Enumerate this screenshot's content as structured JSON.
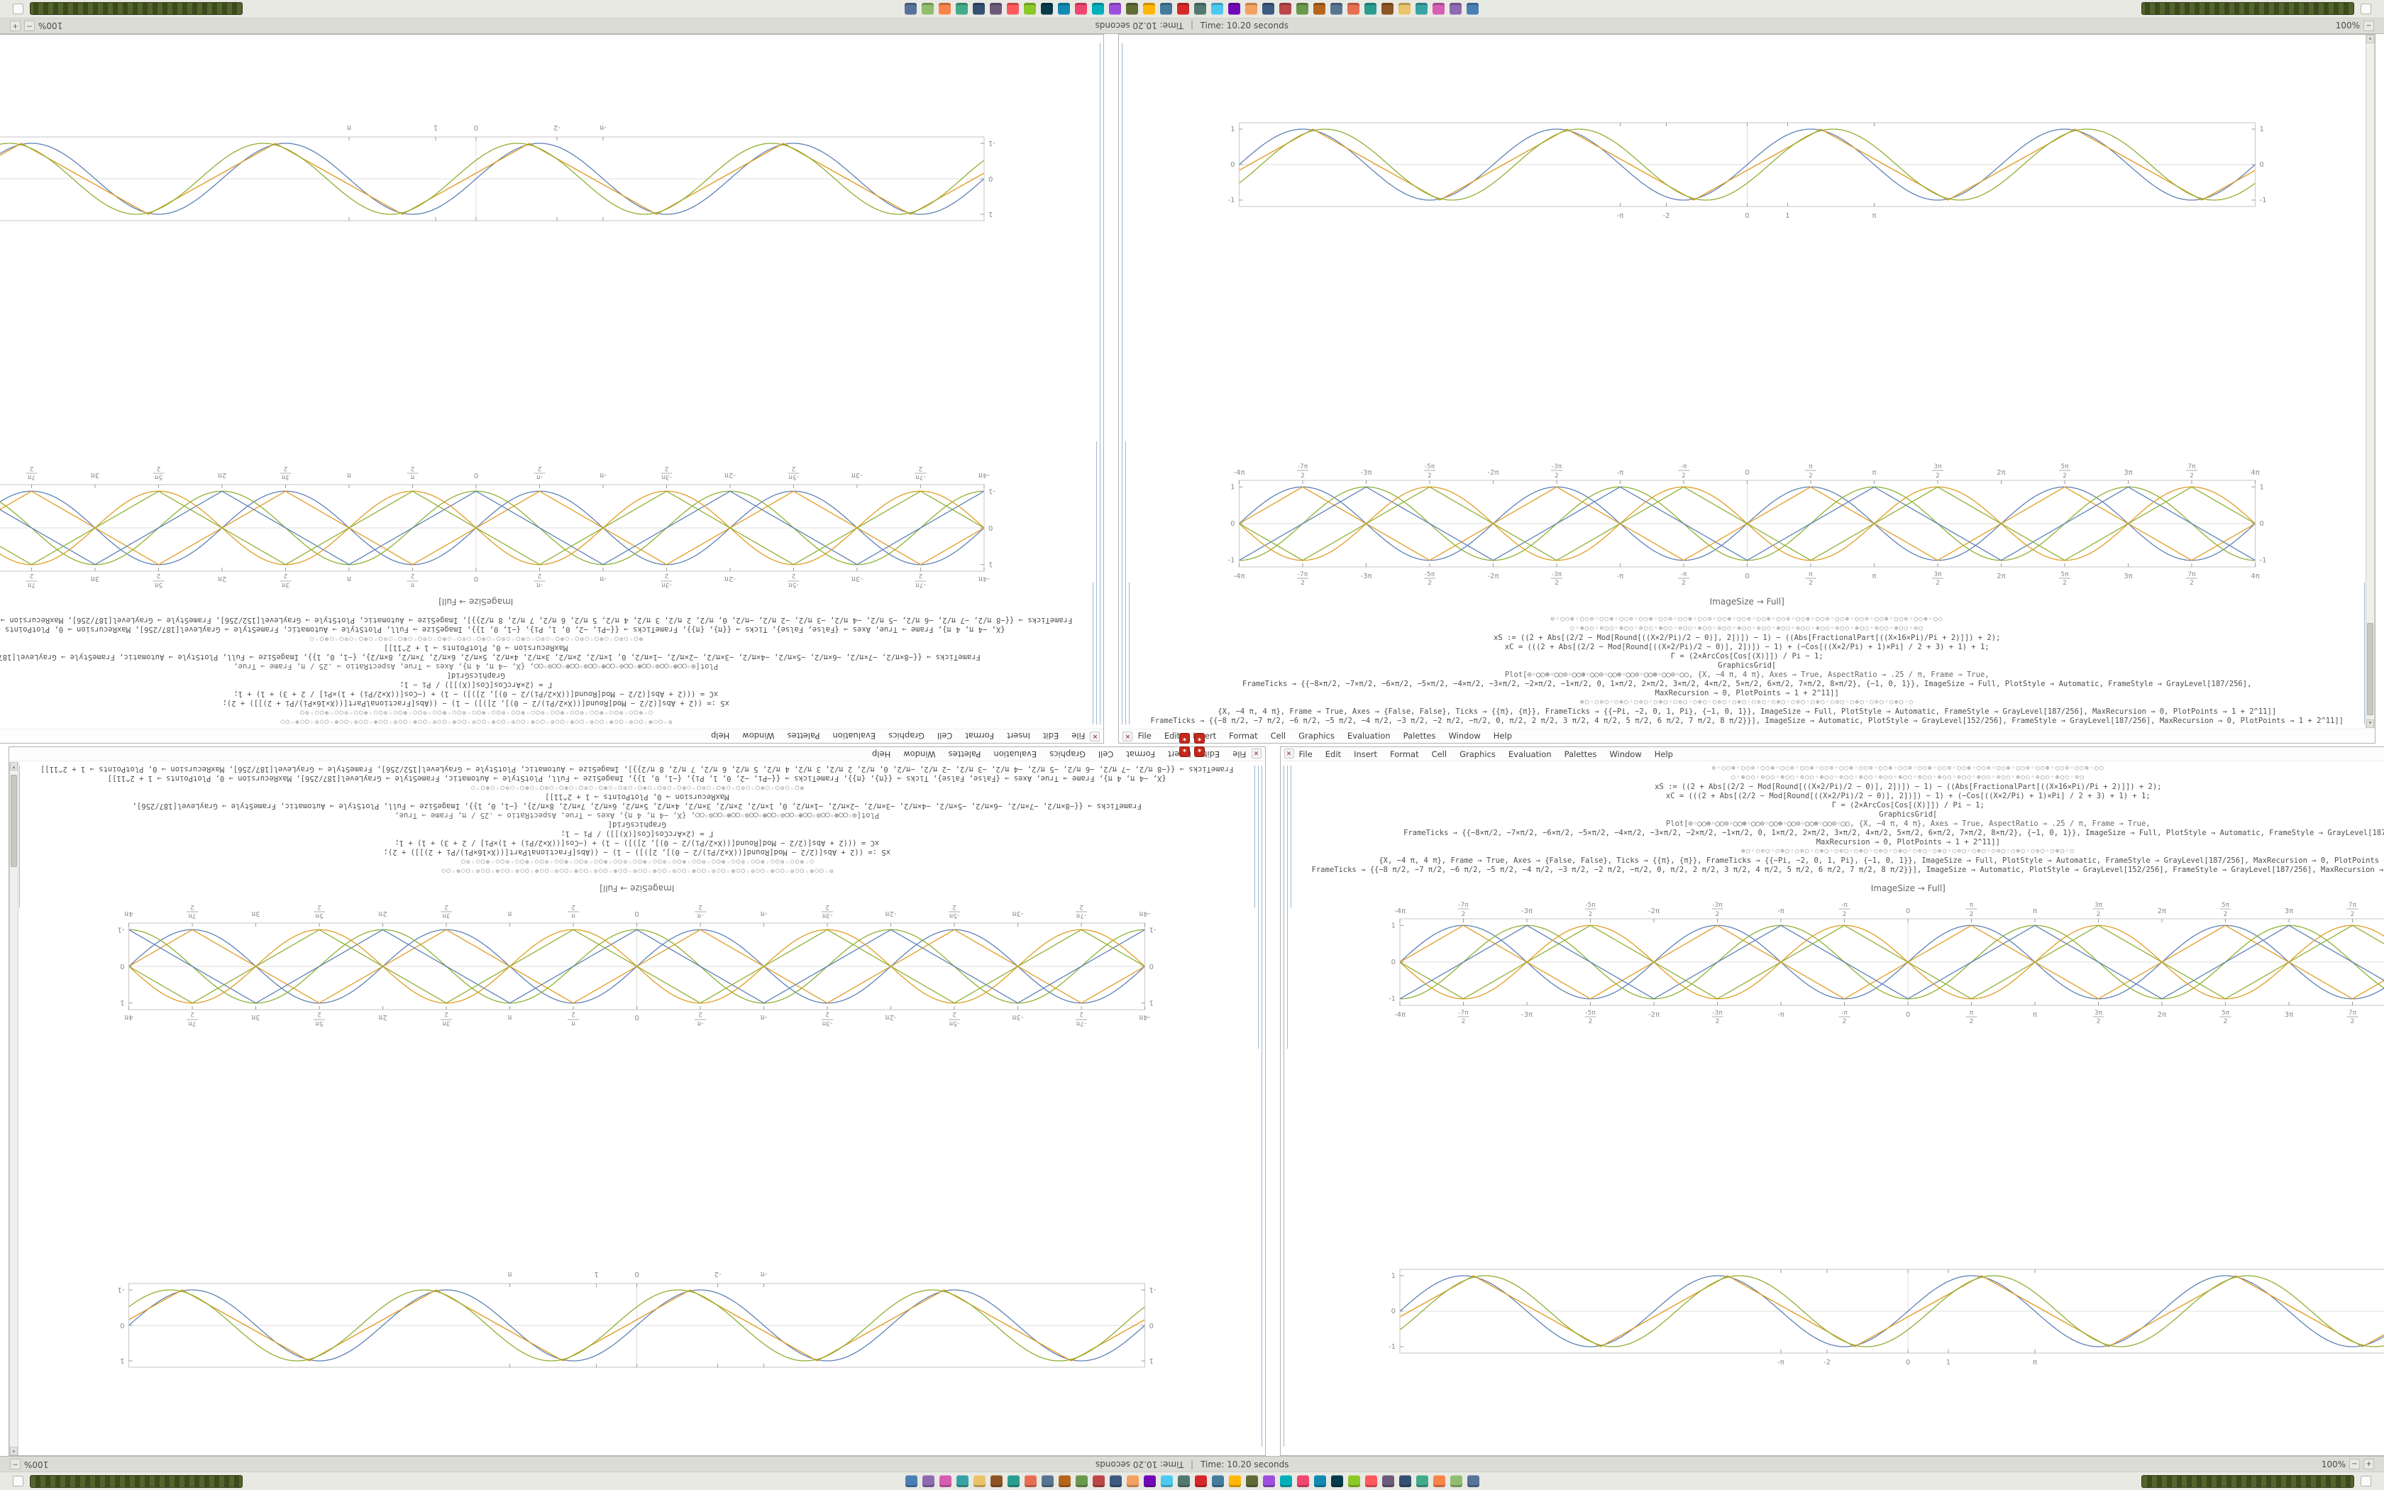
{
  "title_bar": {
    "title": "Time: 10.20 seconds",
    "divider": "|",
    "zoom": "100%"
  },
  "menu": {
    "items": [
      "File",
      "Edit",
      "Insert",
      "Format",
      "Cell",
      "Graphics",
      "Evaluation",
      "Palettes",
      "Window",
      "Help"
    ]
  },
  "icons": {
    "scroll_up": "▴",
    "scroll_down": "▾",
    "zoom_in": "+",
    "zoom_out": "−",
    "spikey": "✶",
    "close": "✕"
  },
  "window": {
    "caption": "ImageSize → Full]",
    "code_lines": [
      {
        "kind": "glyphs",
        "text": "⊙◦◯○⊕◦◯○⊙◦◯○⊕◦◯○⊙◦◯○⊕◦◯○⊙◦◯○⊕◦◯○⊙◦◯○⊕◦◯○⊙◦◯○⊕◦◯○⊙◦◯○⊕◦◯○⊙◦◯○⊕◦◯○⊙◦◯○⊕◦◯○⊙◦◯○⊕◦◯○"
      },
      {
        "kind": "glyphs",
        "text": "○◦⊕◯○◦⊙◯○◦⊕◯○◦⊙◯○◦⊕◯○◦⊙◯○◦⊕◯○◦⊙◯○◦⊕◯○◦⊙◯○◦⊕◯○◦⊙◯○◦⊕◯○◦⊙◯○◦⊕◯○◦⊙◯○◦⊕◯○◦⊙◯"
      },
      {
        "kind": "code",
        "text": "xS := ((2 + Abs[(2/2 − Mod[Round[((X×2/Pi)/2 − 0)], 2])]) − 1) − ((Abs[FractionalPart[((X×16×Pi)/Pi + 2)]]) + 2);"
      },
      {
        "kind": "code",
        "text": "xC = (((2 + Abs[(2/2 − Mod[Round[((X×2/Pi)/2 − 0)], 2])]) − 1) + (−Cos[((X×2/Pi) + 1)×Pi] / 2 + 3) + 1) + 1;"
      },
      {
        "kind": "code",
        "text": "Γ = (2×ArcCos[Cos[(X)]]) / Pi − 1;"
      },
      {
        "kind": "code",
        "text": "GraphicsGrid["
      },
      {
        "kind": "mixed",
        "text": "Plot[⊙◦◯○⊕◦◯○⊙◦◯○⊕◦◯○⊙◦◯○⊕◦◯○⊙◦◯○⊕◦◯○⊙◦◯○, {X, −4 π, 4 π}, Axes → True, AspectRatio → .25 / π, Frame → True,"
      },
      {
        "kind": "code",
        "text": "FrameTicks → {{−8×π/2, −7×π/2, −6×π/2, −5×π/2, −4×π/2, −3×π/2, −2×π/2, −1×π/2, 0, 1×π/2, 2×π/2, 3×π/2, 4×π/2, 5×π/2, 6×π/2, 7×π/2, 8×π/2}, {−1, 0, 1}}, ImageSize → Full, PlotStyle → Automatic, FrameStyle → GrayLevel[187/256],"
      },
      {
        "kind": "code",
        "text": "MaxRecursion → 0, PlotPoints → 1 + 2^11]]"
      },
      {
        "kind": "glyphs",
        "text": "⊕◯◦○⊙◯◦○⊕◯◦○⊙◯◦○⊕◯◦○⊙◯◦○⊕◯◦○⊙◯◦○⊕◯◦○⊙◯◦○⊕◯◦○⊙◯◦○⊕◯◦○⊙◯◦○⊕◯◦○⊙◯◦○⊕◯◦○"
      },
      {
        "kind": "code",
        "text": "{X, −4 π, 4 π}, Frame → True, Axes → {False, False}, Ticks → {{π}, {π}}, FrameTicks → {{−Pi, −2, 0, 1, Pi}, {−1, 0, 1}}, ImageSize → Full, PlotStyle → Automatic, FrameStyle → GrayLevel[187/256], MaxRecursion → 0, PlotPoints → 1 + 2^11]]"
      },
      {
        "kind": "code",
        "text": "FrameTicks → {{−8 π/2, −7 π/2, −6 π/2, −5 π/2, −4 π/2, −3 π/2, −2 π/2, −π/2, 0, π/2, 2 π/2, 3 π/2, 4 π/2, 5 π/2, 6 π/2, 7 π/2, 8 π/2}}], ImageSize → Automatic, PlotStyle → GrayLevel[152/256], FrameStyle → GrayLevel[187/256], MaxRecursion → 0, PlotPoints → 1 + 2^11]]"
      }
    ]
  },
  "chart_data": [
    {
      "id": "harmonic",
      "type": "line",
      "title": "",
      "xlabel": "",
      "ylabel": "",
      "x_range_pi": [
        -4,
        4
      ],
      "ylim": [
        -1,
        1
      ],
      "x_tick_labels": [
        "-4π",
        "-7π/2",
        "-3π",
        "-5π/2",
        "-2π",
        "-3π/2",
        "-π",
        "-π/2",
        "0",
        "π/2",
        "π",
        "3π/2",
        "2π",
        "5π/2",
        "3π",
        "7π/2",
        "4π"
      ],
      "y_tick_labels": [
        "-1",
        "0",
        "1"
      ],
      "frame": true,
      "grid": false,
      "series": [
        {
          "fn": "sin",
          "phase": 0,
          "amp": 1,
          "color": "#5e81b5"
        },
        {
          "fn": "tri",
          "phase": 0,
          "amp": 1,
          "color": "#e19c24"
        },
        {
          "fn": "sin",
          "phase": -1.5708,
          "amp": 1,
          "color": "#8fb032"
        },
        {
          "fn": "tri",
          "phase": -1.5708,
          "amp": 1,
          "color": "#5e81b5"
        },
        {
          "fn": "sin",
          "phase": 0,
          "amp": -1,
          "color": "#e19c24"
        },
        {
          "fn": "tri",
          "phase": 0,
          "amp": -1,
          "color": "#8fb032"
        }
      ]
    },
    {
      "id": "strip",
      "type": "line",
      "title": "",
      "xlabel": "",
      "ylabel": "",
      "x_range_pi": [
        -4,
        4
      ],
      "ylim": [
        -1,
        1
      ],
      "x_ticks": {
        "values": [
          -3.14159,
          -2,
          0,
          1,
          3.14159
        ],
        "labels": [
          "-π",
          "-2",
          "0",
          "1",
          "π"
        ]
      },
      "y_tick_labels": [
        "-1",
        "0",
        "1"
      ],
      "frame": true,
      "grid": false,
      "series": [
        {
          "fn": "sin",
          "phase": 0,
          "amp": 1,
          "color": "#5e81b5"
        },
        {
          "fn": "tri",
          "phase": -0.25,
          "amp": 1,
          "color": "#e19c24"
        },
        {
          "fn": "sin",
          "phase": -0.55,
          "amp": 1,
          "color": "#8fb032"
        }
      ]
    }
  ],
  "taskbar": {
    "icon_colors": [
      "#4a7fb5",
      "#8e6bb0",
      "#d65db1",
      "#38a3a5",
      "#e9c46a",
      "#8d5524",
      "#2a9d8f",
      "#e76f51",
      "#577590",
      "#b5651d",
      "#6a994e",
      "#bc4749",
      "#3d5a80",
      "#f4a261",
      "#7209b7",
      "#4cc9f0",
      "#52796f",
      "#d62828",
      "#457b9d",
      "#ffb703",
      "#606c38",
      "#9d4edd",
      "#00afb9",
      "#ef476f",
      "#118ab2",
      "#073b4c",
      "#8ac926",
      "#ff595e",
      "#6d597a",
      "#355070",
      "#43aa8b",
      "#f9844a",
      "#90be6d",
      "#577399"
    ]
  }
}
